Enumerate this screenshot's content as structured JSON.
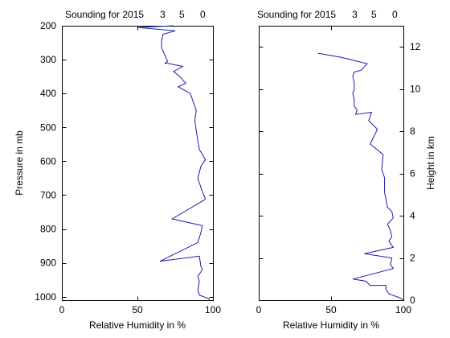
{
  "chart_data": [
    {
      "type": "line",
      "title": "Sounding for 2015",
      "title_suffix": [
        "3",
        "5",
        "0"
      ],
      "xlabel": "Relative Humidity in %",
      "ylabel": "Pressure in mb",
      "xlim": [
        0,
        100
      ],
      "ylim": [
        1010,
        200
      ],
      "y_reversed": true,
      "xticks": [
        0,
        50,
        100
      ],
      "yticks": [
        200,
        300,
        400,
        500,
        600,
        700,
        800,
        900,
        1000
      ],
      "grid": false,
      "line_color": "#1a1aaa",
      "series": [
        {
          "x": [
            74,
            50,
            75,
            67,
            66,
            66,
            68,
            70,
            68,
            69,
            80,
            74,
            78,
            82,
            77,
            85,
            89,
            88,
            90,
            91,
            95,
            92,
            90,
            93,
            95,
            94,
            73,
            93,
            92,
            90,
            65,
            91,
            92,
            93,
            90,
            91,
            90,
            91,
            94,
            97,
            98
          ],
          "y": [
            200,
            205,
            215,
            225,
            245,
            265,
            285,
            305,
            312,
            310,
            320,
            335,
            350,
            370,
            380,
            400,
            450,
            480,
            540,
            565,
            595,
            615,
            650,
            690,
            710,
            715,
            770,
            790,
            810,
            840,
            895,
            880,
            910,
            920,
            940,
            955,
            980,
            995,
            1000,
            1005,
            1010
          ]
        }
      ]
    },
    {
      "type": "line",
      "title": "Sounding for 2015",
      "title_suffix": [
        "3",
        "5",
        "0"
      ],
      "xlabel": "Relative Humidity in %",
      "ylabel": "Height in km",
      "xlim": [
        0,
        100
      ],
      "ylim": [
        0,
        13
      ],
      "xticks": [
        0,
        50,
        100
      ],
      "yticks": [
        0,
        2,
        4,
        6,
        8,
        10,
        12
      ],
      "y_axis_position": "right",
      "grid": false,
      "line_color": "#1a1aaa",
      "series": [
        {
          "x": [
            41,
            57,
            75,
            71,
            66,
            65,
            66,
            66,
            65,
            66,
            66,
            68,
            67,
            78,
            76,
            82,
            80,
            77,
            86,
            85,
            87,
            87,
            89,
            92,
            93,
            89,
            91,
            92,
            90,
            93,
            73,
            92,
            91,
            93,
            65,
            74,
            77,
            88,
            88,
            90,
            98,
            100
          ],
          "y": [
            11.7,
            11.5,
            11.2,
            10.9,
            10.8,
            10.6,
            10.3,
            10.0,
            9.8,
            9.5,
            9.2,
            9.0,
            8.8,
            8.9,
            8.5,
            8.1,
            7.8,
            7.4,
            6.9,
            6.2,
            5.8,
            5.1,
            4.4,
            4.2,
            3.9,
            3.6,
            3.3,
            3.0,
            2.8,
            2.5,
            2.2,
            2.0,
            1.7,
            1.5,
            1.0,
            0.9,
            0.7,
            0.7,
            0.5,
            0.3,
            0.1,
            0
          ]
        }
      ]
    }
  ]
}
